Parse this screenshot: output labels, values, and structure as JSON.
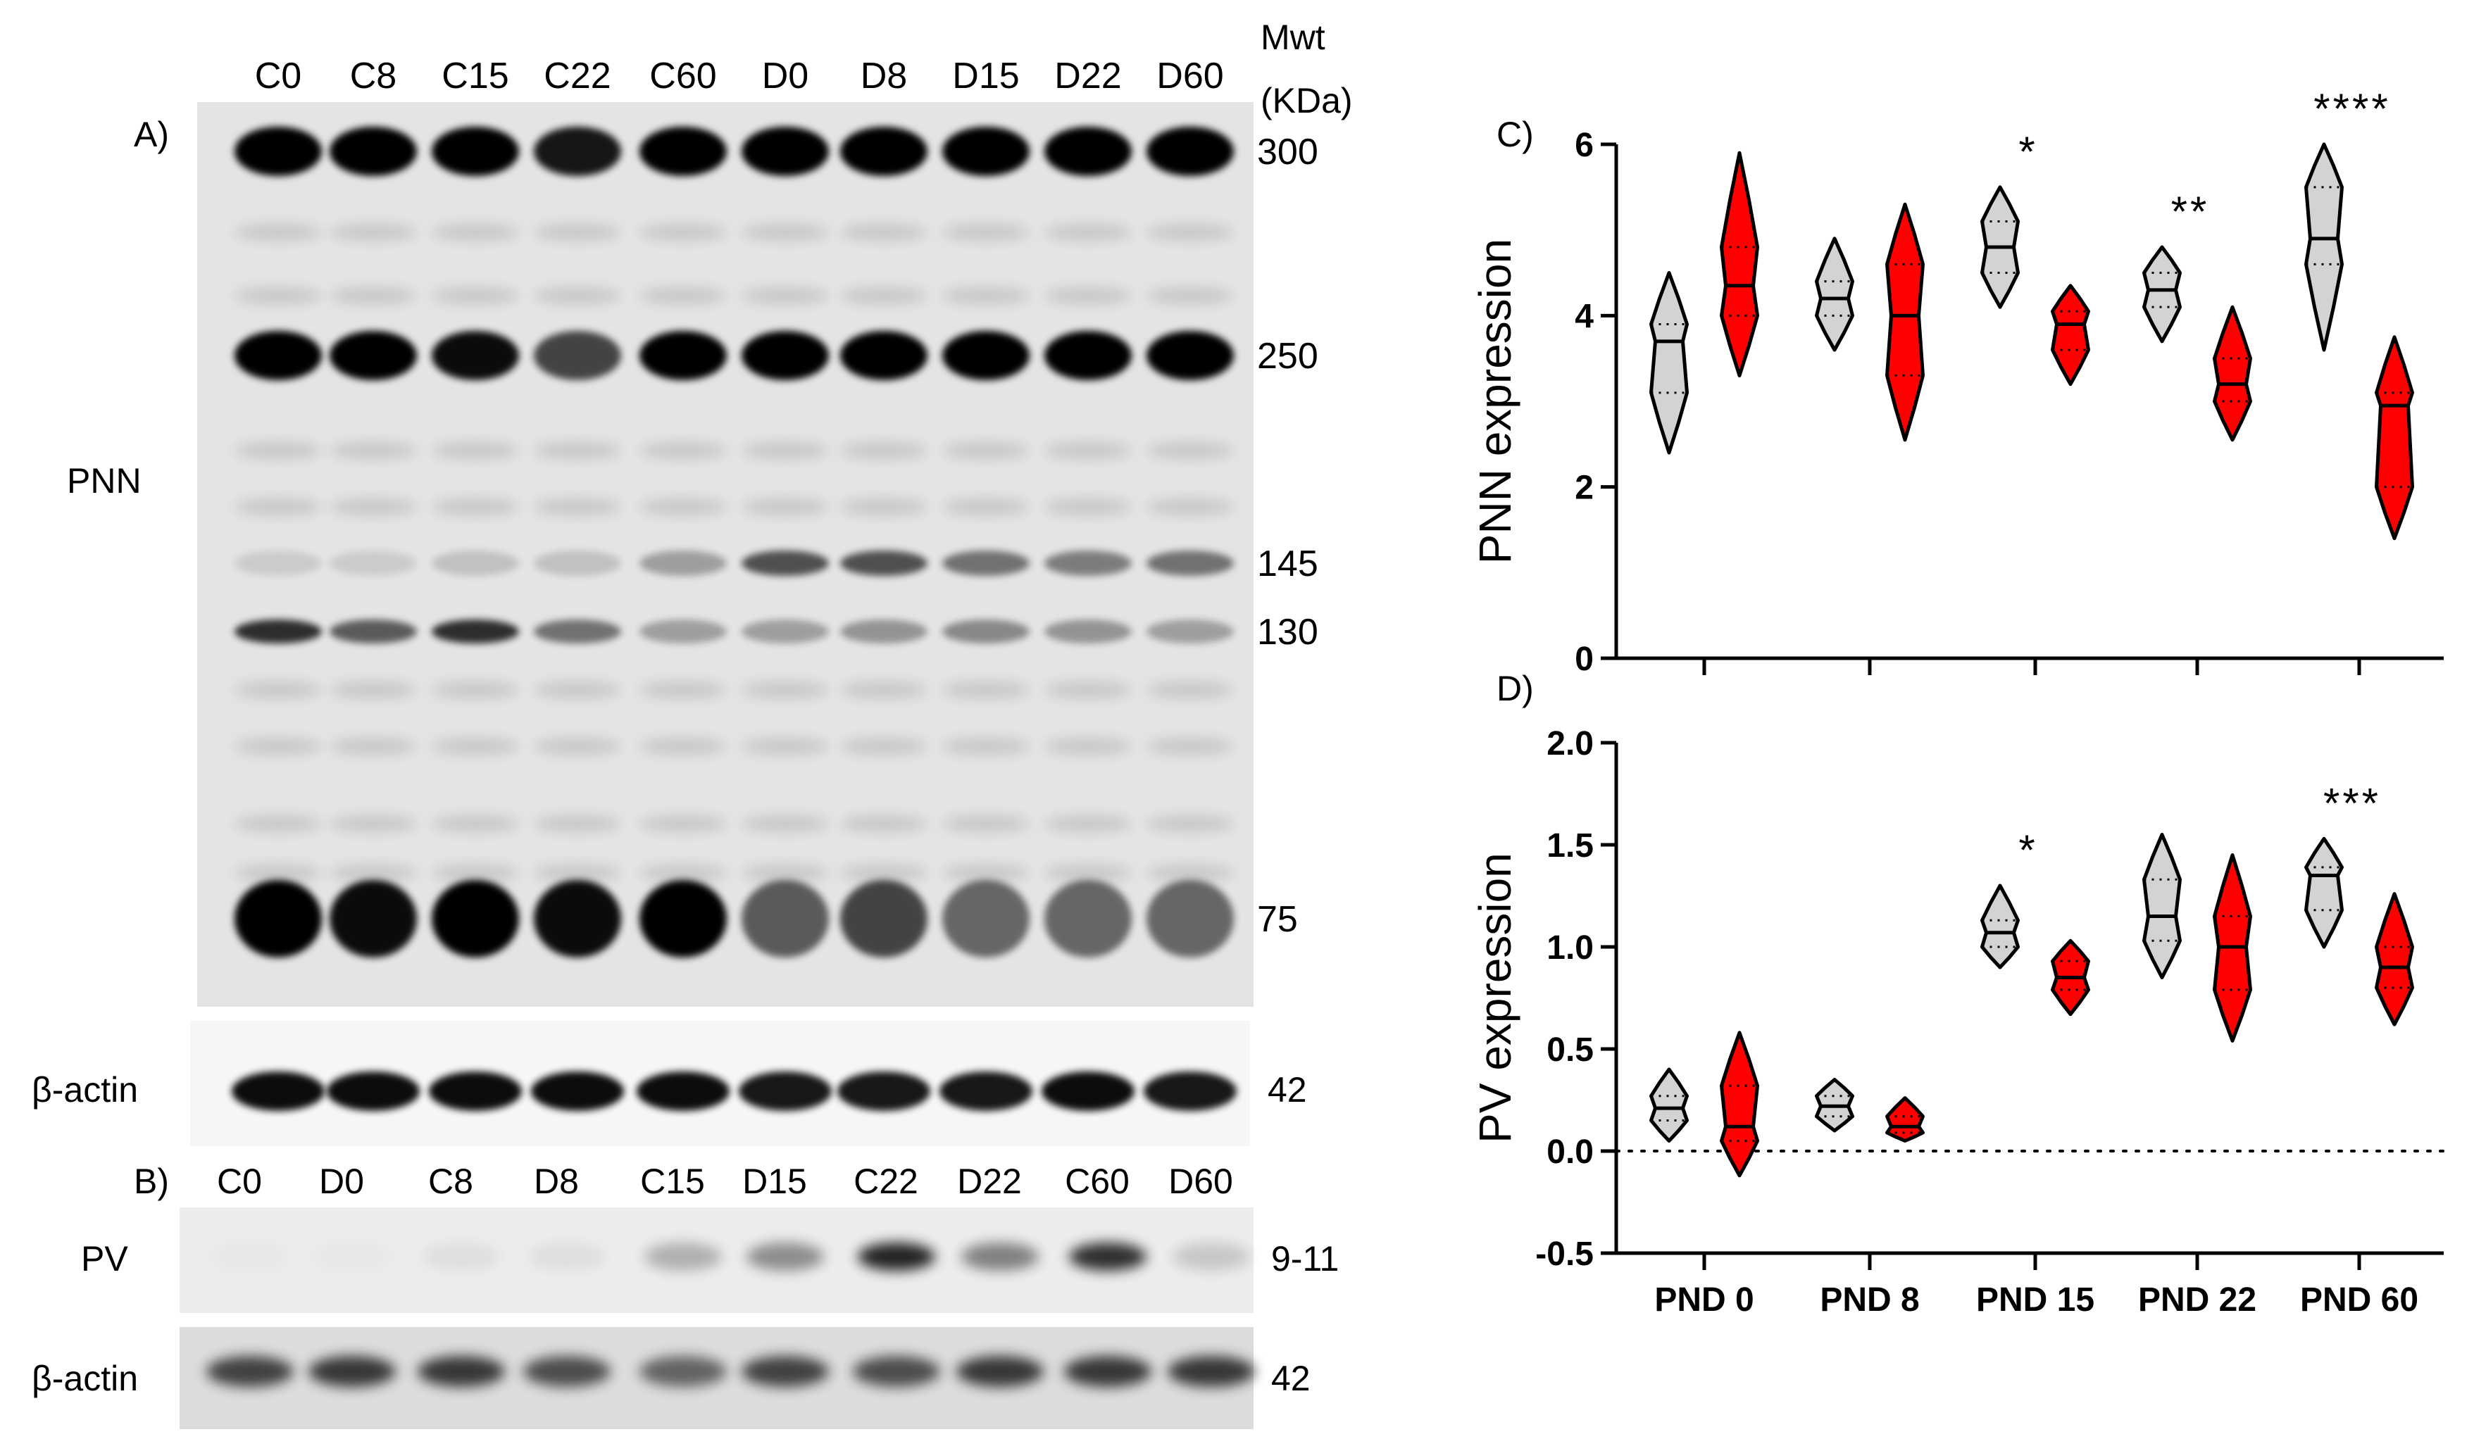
{
  "blots": {
    "top_lane_labels": [
      "C0",
      "C8",
      "C15",
      "C22",
      "C60",
      "D0",
      "D8",
      "D15",
      "D22",
      "D60"
    ],
    "pv_lane_labels": [
      "C0",
      "D0",
      "C8",
      "D8",
      "C15",
      "D15",
      "C22",
      "D22",
      "C60",
      "D60"
    ],
    "mwt_title_line1": "Mwt",
    "mwt_title_line2": "(KDa)",
    "mw_markers": [
      "300",
      "250",
      "145",
      "130",
      "75"
    ],
    "panel_a_label": "A)",
    "panel_b_label": "B)",
    "pnn_label": "PNN",
    "actin_label": "β-actin",
    "actin_mw": "42",
    "pv_label": "PV",
    "pv_mw": "9-11",
    "colors": {
      "band": "#000000",
      "background": "#e4e4e4"
    },
    "pnn_band_intensity": {
      "300": [
        1,
        1,
        1,
        0.9,
        1,
        1,
        1,
        1,
        1,
        1
      ],
      "250": [
        1,
        1,
        0.95,
        0.7,
        1,
        1,
        1,
        1,
        1,
        1
      ],
      "145": [
        0.1,
        0.1,
        0.15,
        0.15,
        0.3,
        0.65,
        0.65,
        0.5,
        0.45,
        0.5
      ],
      "130": [
        0.8,
        0.6,
        0.8,
        0.5,
        0.3,
        0.3,
        0.35,
        0.4,
        0.35,
        0.3
      ],
      "75": [
        1,
        0.95,
        1,
        0.95,
        1,
        0.6,
        0.7,
        0.55,
        0.55,
        0.55
      ]
    },
    "pv_band_intensity": [
      0.02,
      0.02,
      0.05,
      0.05,
      0.25,
      0.4,
      0.85,
      0.45,
      0.8,
      0.15
    ],
    "actin_band_intensity": [
      0.95,
      0.95,
      0.95,
      0.95,
      0.95,
      0.9,
      0.9,
      0.9,
      0.95,
      0.9
    ],
    "pv_actin_band_intensity": [
      0.7,
      0.75,
      0.75,
      0.65,
      0.55,
      0.7,
      0.65,
      0.75,
      0.75,
      0.75
    ]
  },
  "chart_data": [
    {
      "type": "violin",
      "panel_label": "C)",
      "title": "",
      "xlabel": "",
      "ylabel": "PNN expression",
      "ylim": [
        0,
        6
      ],
      "yticks": [
        0,
        2,
        4,
        6
      ],
      "categories": [],
      "group_positions": [
        0,
        1,
        2,
        3,
        4
      ],
      "zero_line": false,
      "series": [
        {
          "color": "#d3d3d3",
          "stats": [
            {
              "min": 2.4,
              "q1": 3.1,
              "median": 3.7,
              "q3": 3.9,
              "max": 4.5
            },
            {
              "min": 3.6,
              "q1": 4.0,
              "median": 4.2,
              "q3": 4.4,
              "max": 4.9
            },
            {
              "min": 4.1,
              "q1": 4.5,
              "median": 4.8,
              "q3": 5.1,
              "max": 5.5
            },
            {
              "min": 3.7,
              "q1": 4.1,
              "median": 4.3,
              "q3": 4.5,
              "max": 4.8
            },
            {
              "min": 3.6,
              "q1": 4.6,
              "median": 4.9,
              "q3": 5.5,
              "max": 6.0
            }
          ]
        },
        {
          "color": "#ff0000",
          "stats": [
            {
              "min": 3.3,
              "q1": 4.0,
              "median": 4.35,
              "q3": 4.8,
              "max": 5.9
            },
            {
              "min": 2.55,
              "q1": 3.3,
              "median": 4.0,
              "q3": 4.6,
              "max": 5.3
            },
            {
              "min": 3.2,
              "q1": 3.6,
              "median": 3.9,
              "q3": 4.05,
              "max": 4.35
            },
            {
              "min": 2.55,
              "q1": 3.0,
              "median": 3.2,
              "q3": 3.5,
              "max": 4.1
            },
            {
              "min": 1.4,
              "q1": 2.0,
              "median": 2.95,
              "q3": 3.1,
              "max": 3.75
            }
          ]
        }
      ],
      "annotations": [
        {
          "group": 2,
          "text": "*"
        },
        {
          "group": 3,
          "text": "**"
        },
        {
          "group": 4,
          "text": "****"
        }
      ]
    },
    {
      "type": "violin",
      "panel_label": "D)",
      "title": "",
      "xlabel": "",
      "ylabel": "PV expression",
      "ylim": [
        -0.5,
        2.0
      ],
      "yticks": [
        "-0.5",
        "0.0",
        "0.5",
        "1.0",
        "1.5",
        "2.0"
      ],
      "categories": [
        "PND 0",
        "PND 8",
        "PND 15",
        "PND 22",
        "PND 60"
      ],
      "zero_line": true,
      "series": [
        {
          "color": "#d3d3d3",
          "stats": [
            {
              "min": 0.05,
              "q1": 0.15,
              "median": 0.21,
              "q3": 0.27,
              "max": 0.4
            },
            {
              "min": 0.1,
              "q1": 0.17,
              "median": 0.22,
              "q3": 0.27,
              "max": 0.35
            },
            {
              "min": 0.9,
              "q1": 1.0,
              "median": 1.07,
              "q3": 1.13,
              "max": 1.3
            },
            {
              "min": 0.85,
              "q1": 1.03,
              "median": 1.15,
              "q3": 1.33,
              "max": 1.55
            },
            {
              "min": 1.0,
              "q1": 1.18,
              "median": 1.35,
              "q3": 1.39,
              "max": 1.53
            }
          ]
        },
        {
          "color": "#ff0000",
          "stats": [
            {
              "min": -0.12,
              "q1": 0.05,
              "median": 0.12,
              "q3": 0.32,
              "max": 0.58
            },
            {
              "min": 0.05,
              "q1": 0.09,
              "median": 0.12,
              "q3": 0.17,
              "max": 0.26
            },
            {
              "min": 0.67,
              "q1": 0.79,
              "median": 0.85,
              "q3": 0.93,
              "max": 1.03
            },
            {
              "min": 0.54,
              "q1": 0.79,
              "median": 1.0,
              "q3": 1.15,
              "max": 1.45
            },
            {
              "min": 0.62,
              "q1": 0.8,
              "median": 0.9,
              "q3": 1.0,
              "max": 1.26
            }
          ]
        }
      ],
      "annotations": [
        {
          "group": 2,
          "text": "*"
        },
        {
          "group": 4,
          "text": "***"
        }
      ]
    }
  ]
}
